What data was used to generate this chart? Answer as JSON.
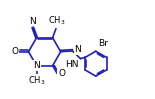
{
  "bg_color": "#ffffff",
  "bond_color": "#2020bb",
  "text_color": "#000000",
  "line_width": 1.2,
  "font_size": 6.5,
  "fig_width": 1.55,
  "fig_height": 0.99,
  "dpi": 100,
  "xlim": [
    0.0,
    10.5
  ],
  "ylim": [
    1.0,
    7.0
  ]
}
